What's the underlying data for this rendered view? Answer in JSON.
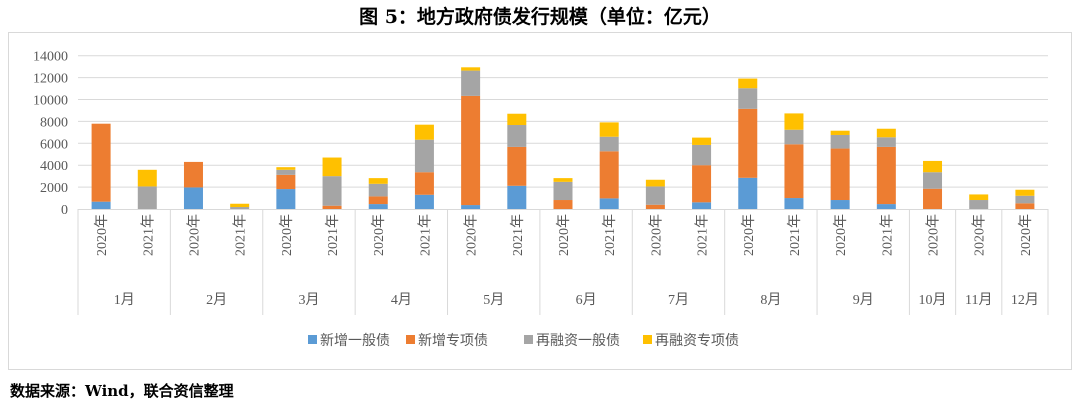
{
  "title": "图 5：地方政府债发行规模（单位：亿元）",
  "source": "数据来源：Wind，联合资信整理",
  "chart_data": {
    "type": "bar",
    "stacked": true,
    "title": "图 5：地方政府债发行规模（单位：亿元）",
    "ylim": [
      0,
      14000
    ],
    "yticks": [
      0,
      2000,
      4000,
      6000,
      8000,
      10000,
      12000,
      14000
    ],
    "grid": true,
    "legend": "bottom",
    "groups": [
      {
        "label": "1月",
        "years": [
          "2020年",
          "2021年"
        ]
      },
      {
        "label": "2月",
        "years": [
          "2020年",
          "2021年"
        ]
      },
      {
        "label": "3月",
        "years": [
          "2020年",
          "2021年"
        ]
      },
      {
        "label": "4月",
        "years": [
          "2020年",
          "2021年"
        ]
      },
      {
        "label": "5月",
        "years": [
          "2020年",
          "2021年"
        ]
      },
      {
        "label": "6月",
        "years": [
          "2020年",
          "2021年"
        ]
      },
      {
        "label": "7月",
        "years": [
          "2020年",
          "2021年"
        ]
      },
      {
        "label": "8月",
        "years": [
          "2020年",
          "2021年"
        ]
      },
      {
        "label": "9月",
        "years": [
          "2020年",
          "2021年"
        ]
      },
      {
        "label": "10月",
        "years": [
          "2020年"
        ]
      },
      {
        "label": "11月",
        "years": [
          "2020年"
        ]
      },
      {
        "label": "12月",
        "years": [
          "2020年"
        ]
      }
    ],
    "series": [
      {
        "name": "新增一般债",
        "color": "#5b9bd5",
        "values": [
          670,
          0,
          1970,
          0,
          1820,
          0,
          450,
          1300,
          360,
          2120,
          0,
          970,
          0,
          610,
          2850,
          1000,
          820,
          450,
          0,
          0,
          0
        ]
      },
      {
        "name": "新增专项债",
        "color": "#ed7d31",
        "values": [
          7120,
          0,
          2330,
          0,
          1300,
          300,
          700,
          2060,
          9970,
          3550,
          820,
          4300,
          390,
          3390,
          6300,
          4910,
          4700,
          5220,
          1850,
          0,
          520
        ]
      },
      {
        "name": "再融资一般债",
        "color": "#a5a5a5",
        "values": [
          0,
          2060,
          0,
          180,
          460,
          2700,
          1150,
          2970,
          2310,
          2000,
          1660,
          1330,
          1670,
          1850,
          1880,
          1330,
          1240,
          880,
          1510,
          820,
          690
        ]
      },
      {
        "name": "再融资专项债",
        "color": "#ffc000",
        "values": [
          0,
          1520,
          0,
          300,
          240,
          1700,
          520,
          1370,
          300,
          1030,
          340,
          1310,
          610,
          670,
          880,
          1490,
          390,
          780,
          1030,
          510,
          550
        ]
      }
    ]
  }
}
